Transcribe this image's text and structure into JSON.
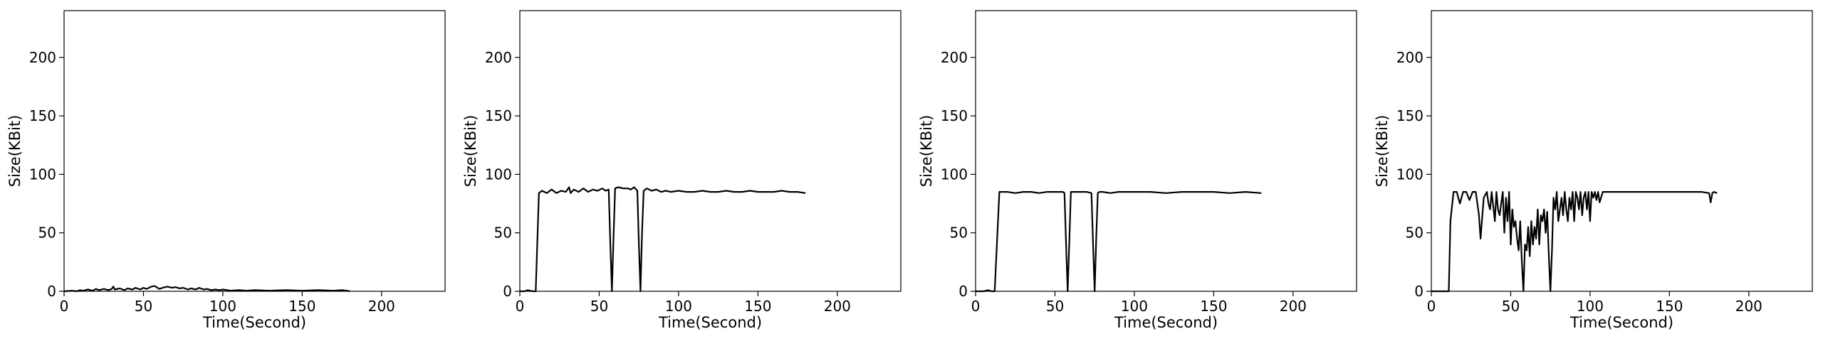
{
  "chart_data": [
    {
      "type": "line",
      "xlabel": "Time(Second)",
      "ylabel": "Size(KBit)",
      "xlim": [
        0,
        240
      ],
      "ylim": [
        0,
        240
      ],
      "xticks": [
        0,
        50,
        100,
        150,
        200
      ],
      "yticks": [
        0,
        50,
        100,
        150,
        200
      ],
      "grid": false,
      "series": [
        {
          "color": "#000000",
          "x": [
            0,
            5,
            8,
            10,
            12,
            15,
            18,
            20,
            22,
            25,
            28,
            30,
            31,
            32,
            35,
            38,
            40,
            43,
            45,
            48,
            50,
            52,
            55,
            57,
            60,
            62,
            65,
            68,
            70,
            73,
            75,
            78,
            80,
            83,
            85,
            88,
            90,
            93,
            95,
            98,
            100,
            105,
            110,
            115,
            120,
            130,
            140,
            150,
            160,
            170,
            175,
            178,
            180
          ],
          "y": [
            0,
            0.5,
            0,
            1,
            0.5,
            1.5,
            0.5,
            2,
            1,
            2,
            1,
            2,
            4,
            1.5,
            2.5,
            1,
            2.5,
            1.5,
            3,
            1.5,
            3,
            2,
            4,
            4.5,
            2,
            3,
            4,
            3,
            3.5,
            2.5,
            3,
            1.5,
            2.5,
            1.5,
            3,
            1.5,
            2,
            1,
            1.5,
            1,
            1.5,
            0.5,
            1,
            0.5,
            1,
            0.5,
            1,
            0.5,
            1,
            0.5,
            1,
            0.5,
            0
          ]
        }
      ]
    },
    {
      "type": "line",
      "xlabel": "Time(Second)",
      "ylabel": "Size(KBit)",
      "xlim": [
        0,
        240
      ],
      "ylim": [
        0,
        240
      ],
      "xticks": [
        0,
        50,
        100,
        150,
        200
      ],
      "yticks": [
        0,
        50,
        100,
        150,
        200
      ],
      "grid": false,
      "series": [
        {
          "color": "#000000",
          "x": [
            0,
            3,
            5,
            8,
            10,
            12,
            14,
            17,
            20,
            23,
            26,
            29,
            31,
            32,
            34,
            37,
            40,
            43,
            46,
            49,
            52,
            54,
            56,
            57,
            58,
            59,
            60,
            62,
            65,
            68,
            70,
            72,
            74,
            75,
            76,
            77,
            78,
            80,
            83,
            86,
            89,
            92,
            95,
            100,
            105,
            110,
            115,
            120,
            125,
            130,
            135,
            140,
            145,
            150,
            155,
            160,
            165,
            170,
            175,
            180
          ],
          "y": [
            0,
            0,
            1,
            0,
            0,
            84,
            86,
            84,
            87,
            84,
            86,
            85,
            89,
            84,
            87,
            85,
            88,
            85,
            87,
            86,
            88,
            86,
            87,
            40,
            0,
            45,
            88,
            89,
            88,
            88,
            87,
            89,
            86,
            40,
            0,
            50,
            86,
            88,
            86,
            87,
            85,
            86,
            85,
            86,
            85,
            85,
            86,
            85,
            85,
            86,
            85,
            85,
            86,
            85,
            85,
            85,
            86,
            85,
            85,
            84
          ]
        }
      ]
    },
    {
      "type": "line",
      "xlabel": "Time(Second)",
      "ylabel": "Size(KBit)",
      "xlim": [
        0,
        240
      ],
      "ylim": [
        0,
        240
      ],
      "xticks": [
        0,
        50,
        100,
        150,
        200
      ],
      "yticks": [
        0,
        50,
        100,
        150,
        200
      ],
      "grid": false,
      "series": [
        {
          "color": "#000000",
          "x": [
            0,
            5,
            8,
            10,
            12,
            15,
            20,
            25,
            30,
            35,
            40,
            45,
            50,
            55,
            56,
            57,
            58,
            59,
            60,
            62,
            65,
            70,
            73,
            74,
            75,
            76,
            77,
            78,
            80,
            85,
            90,
            95,
            100,
            110,
            120,
            130,
            140,
            150,
            160,
            170,
            180
          ],
          "y": [
            0,
            0,
            1,
            0,
            0,
            85,
            85,
            84,
            85,
            85,
            84,
            85,
            85,
            85,
            84,
            40,
            0,
            40,
            85,
            85,
            85,
            85,
            84,
            40,
            0,
            45,
            84,
            85,
            85,
            84,
            85,
            85,
            85,
            85,
            84,
            85,
            85,
            85,
            84,
            85,
            84
          ]
        }
      ]
    },
    {
      "type": "line",
      "xlabel": "Time(Second)",
      "ylabel": "Size(KBit)",
      "xlim": [
        0,
        240
      ],
      "ylim": [
        0,
        240
      ],
      "xticks": [
        0,
        50,
        100,
        150,
        200
      ],
      "yticks": [
        0,
        50,
        100,
        150,
        200
      ],
      "grid": false,
      "series": [
        {
          "color": "#000000",
          "x": [
            0,
            3,
            6,
            9,
            11,
            12,
            14,
            16,
            18,
            20,
            22,
            24,
            26,
            28,
            30,
            31,
            33,
            35,
            36,
            37,
            38,
            40,
            41,
            42,
            43,
            45,
            46,
            47,
            48,
            49,
            50,
            51,
            52,
            53,
            54,
            55,
            56,
            57,
            58,
            59,
            60,
            61,
            62,
            63,
            64,
            65,
            66,
            67,
            68,
            69,
            70,
            71,
            72,
            73,
            74,
            75,
            76,
            77,
            78,
            79,
            80,
            81,
            82,
            83,
            84,
            85,
            86,
            87,
            88,
            89,
            90,
            91,
            92,
            93,
            94,
            95,
            96,
            97,
            98,
            99,
            100,
            101,
            102,
            103,
            104,
            105,
            106,
            108,
            110,
            112,
            114,
            116,
            118,
            120,
            125,
            130,
            140,
            150,
            160,
            170,
            175,
            176,
            177,
            178,
            180
          ],
          "y": [
            0,
            0,
            0,
            0,
            0,
            60,
            85,
            85,
            75,
            85,
            85,
            78,
            85,
            85,
            65,
            45,
            80,
            85,
            75,
            70,
            85,
            60,
            85,
            70,
            65,
            85,
            50,
            80,
            60,
            85,
            40,
            70,
            55,
            60,
            45,
            35,
            60,
            25,
            0,
            40,
            35,
            55,
            30,
            60,
            40,
            55,
            45,
            70,
            40,
            65,
            60,
            70,
            50,
            68,
            30,
            0,
            35,
            80,
            70,
            85,
            60,
            70,
            80,
            65,
            85,
            70,
            60,
            80,
            70,
            85,
            60,
            85,
            80,
            70,
            85,
            65,
            80,
            85,
            70,
            85,
            60,
            85,
            80,
            85,
            78,
            85,
            76,
            85,
            85,
            85,
            85,
            85,
            85,
            85,
            85,
            85,
            85,
            85,
            85,
            85,
            84,
            76,
            84,
            85,
            84
          ]
        }
      ]
    }
  ]
}
